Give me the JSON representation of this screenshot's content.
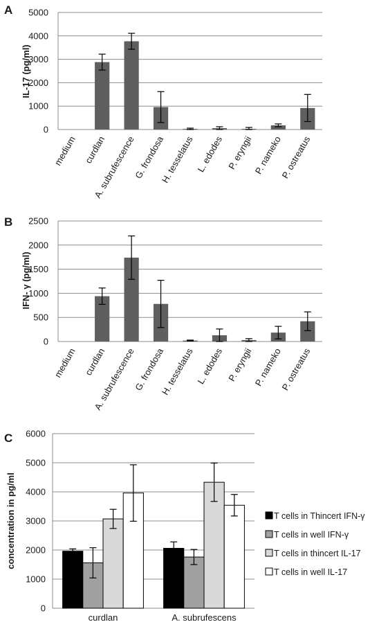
{
  "chart_data": [
    {
      "panel": "A",
      "type": "bar",
      "ylabel": "IL-17 (pg/ml)",
      "ylim": [
        0,
        5000
      ],
      "yticks": [
        0,
        1000,
        2000,
        3000,
        4000,
        5000
      ],
      "grid": true,
      "categories": [
        "medium",
        "curdlan",
        "A. subrufescence",
        "G. frondosa",
        "H. tesselatus",
        "L. edodes",
        "P. eryngii",
        "P. nameko",
        "P. ostreatus"
      ],
      "series": [
        {
          "values": [
            0,
            2880,
            3770,
            960,
            30,
            60,
            30,
            180,
            920
          ],
          "errors": [
            0,
            340,
            340,
            660,
            30,
            60,
            60,
            60,
            580
          ],
          "color": "#5f5f5f"
        }
      ]
    },
    {
      "panel": "B",
      "type": "bar",
      "ylabel": "IFN- γ (pg/ml)",
      "ylim": [
        0,
        2500
      ],
      "yticks": [
        0,
        500,
        1000,
        1500,
        2000,
        2500
      ],
      "grid": true,
      "categories": [
        "medium",
        "curdlan",
        "A. subrufescence",
        "G. frondosa",
        "H. tesselatus",
        "L. edodes",
        "P. eryngii",
        "P. nameko",
        "P. ostreatus"
      ],
      "series": [
        {
          "values": [
            0,
            940,
            1740,
            780,
            20,
            130,
            30,
            185,
            420
          ],
          "errors": [
            0,
            170,
            450,
            490,
            10,
            130,
            30,
            130,
            195
          ],
          "color": "#5f5f5f"
        }
      ]
    },
    {
      "panel": "C",
      "type": "bar",
      "ylabel": "concentration in pg/ml",
      "ylim": [
        0,
        6000
      ],
      "yticks": [
        0,
        1000,
        2000,
        3000,
        4000,
        5000,
        6000
      ],
      "grid": true,
      "legend": "right",
      "categories": [
        "curdlan",
        "A. subrufescens"
      ],
      "series": [
        {
          "name": "T cells in Thincert IFN-γ",
          "values": [
            1960,
            2060
          ],
          "errors": [
            80,
            220
          ],
          "color": "#000000"
        },
        {
          "name": "T cells in well IFN-γ",
          "values": [
            1560,
            1760
          ],
          "errors": [
            520,
            260
          ],
          "color": "#a0a0a0"
        },
        {
          "name": "T cells in thincert IL-17",
          "values": [
            3070,
            4330
          ],
          "errors": [
            330,
            660
          ],
          "color": "#d9d9d9"
        },
        {
          "name": "T cells in well IL-17",
          "values": [
            3960,
            3540
          ],
          "errors": [
            970,
            370
          ],
          "color": "#ffffff"
        }
      ]
    }
  ]
}
